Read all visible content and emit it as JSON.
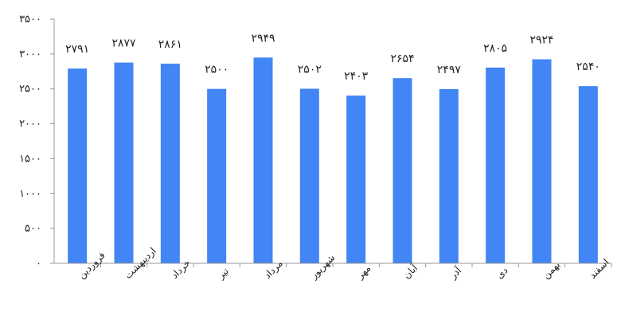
{
  "chart_data": {
    "type": "bar",
    "categories": [
      "فروردین",
      "اردیبهشت",
      "خرداد",
      "تیر",
      "مرداد",
      "شهریور",
      "مهر",
      "آبان",
      "آذر",
      "دی",
      "بهمن",
      "اسفند"
    ],
    "values": [
      2791,
      2877,
      2861,
      2500,
      2949,
      2502,
      2403,
      2654,
      2497,
      2805,
      2924,
      2540
    ],
    "value_labels": [
      "۲۷۹۱",
      "۲۸۷۷",
      "۲۸۶۱",
      "۲۵۰۰",
      "۲۹۴۹",
      "۲۵۰۲",
      "۲۴۰۳",
      "۲۶۵۴",
      "۲۴۹۷",
      "۲۸۰۵",
      "۲۹۲۴",
      "۲۵۴۰"
    ],
    "yticks": [
      0,
      500,
      1000,
      1500,
      2000,
      2500,
      3000,
      3500
    ],
    "ytick_labels": [
      "۰",
      "۵۰۰",
      "۱۰۰۰",
      "۱۵۰۰",
      "۲۰۰۰",
      "۲۵۰۰",
      "۳۰۰۰",
      "۳۵۰۰"
    ],
    "ylim": [
      0,
      3500
    ],
    "bar_color": "#4285f4",
    "axis_color": "#999999",
    "grid": false,
    "title": "",
    "xlabel": "",
    "ylabel": ""
  }
}
